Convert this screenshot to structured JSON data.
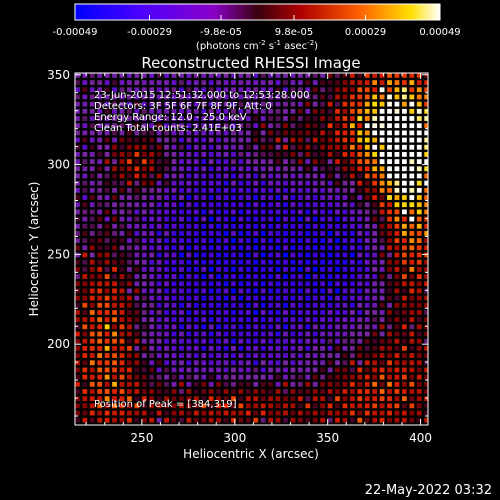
{
  "chart_data": {
    "type": "heatmap",
    "title": "Reconstructed RHESSI Image",
    "xlabel": "Heliocentric X (arcsec)",
    "ylabel": "Heliocentric Y (arcsec)",
    "xlim": [
      214,
      404
    ],
    "ylim": [
      155,
      351
    ],
    "xticks": [
      250,
      300,
      350,
      400
    ],
    "yticks": [
      200,
      250,
      300,
      350
    ],
    "colorbar": {
      "tick_labels": [
        "-0.00049",
        "-0.00029",
        "-9.8e-05",
        "9.8e-05",
        "0.00029",
        "0.00049"
      ],
      "tick_values": [
        -0.00049,
        -0.00029,
        -9.8e-05,
        9.8e-05,
        0.00029,
        0.00049
      ],
      "units_main": "(photons cm",
      "units_sup1": "-2",
      "units_mid1": " s",
      "units_sup2": "-1",
      "units_mid2": " asec",
      "units_sup3": "-2",
      "units_end": ")"
    },
    "annotations": [
      "23-Jun-2015 12:51:32.000 to 12:53:28.000",
      "Detectors: 3F 5F 6F 7F 8F 9F, Att: 0",
      "Energy Range: 12.0 - 25.0 keV",
      "Clean     Total counts: 2.41E+03"
    ],
    "peak_label": "Position of Peak = [384,319]",
    "peak": [
      384,
      319
    ],
    "grid": false
  },
  "footer": {
    "date": "22-May-2022 03:32"
  }
}
